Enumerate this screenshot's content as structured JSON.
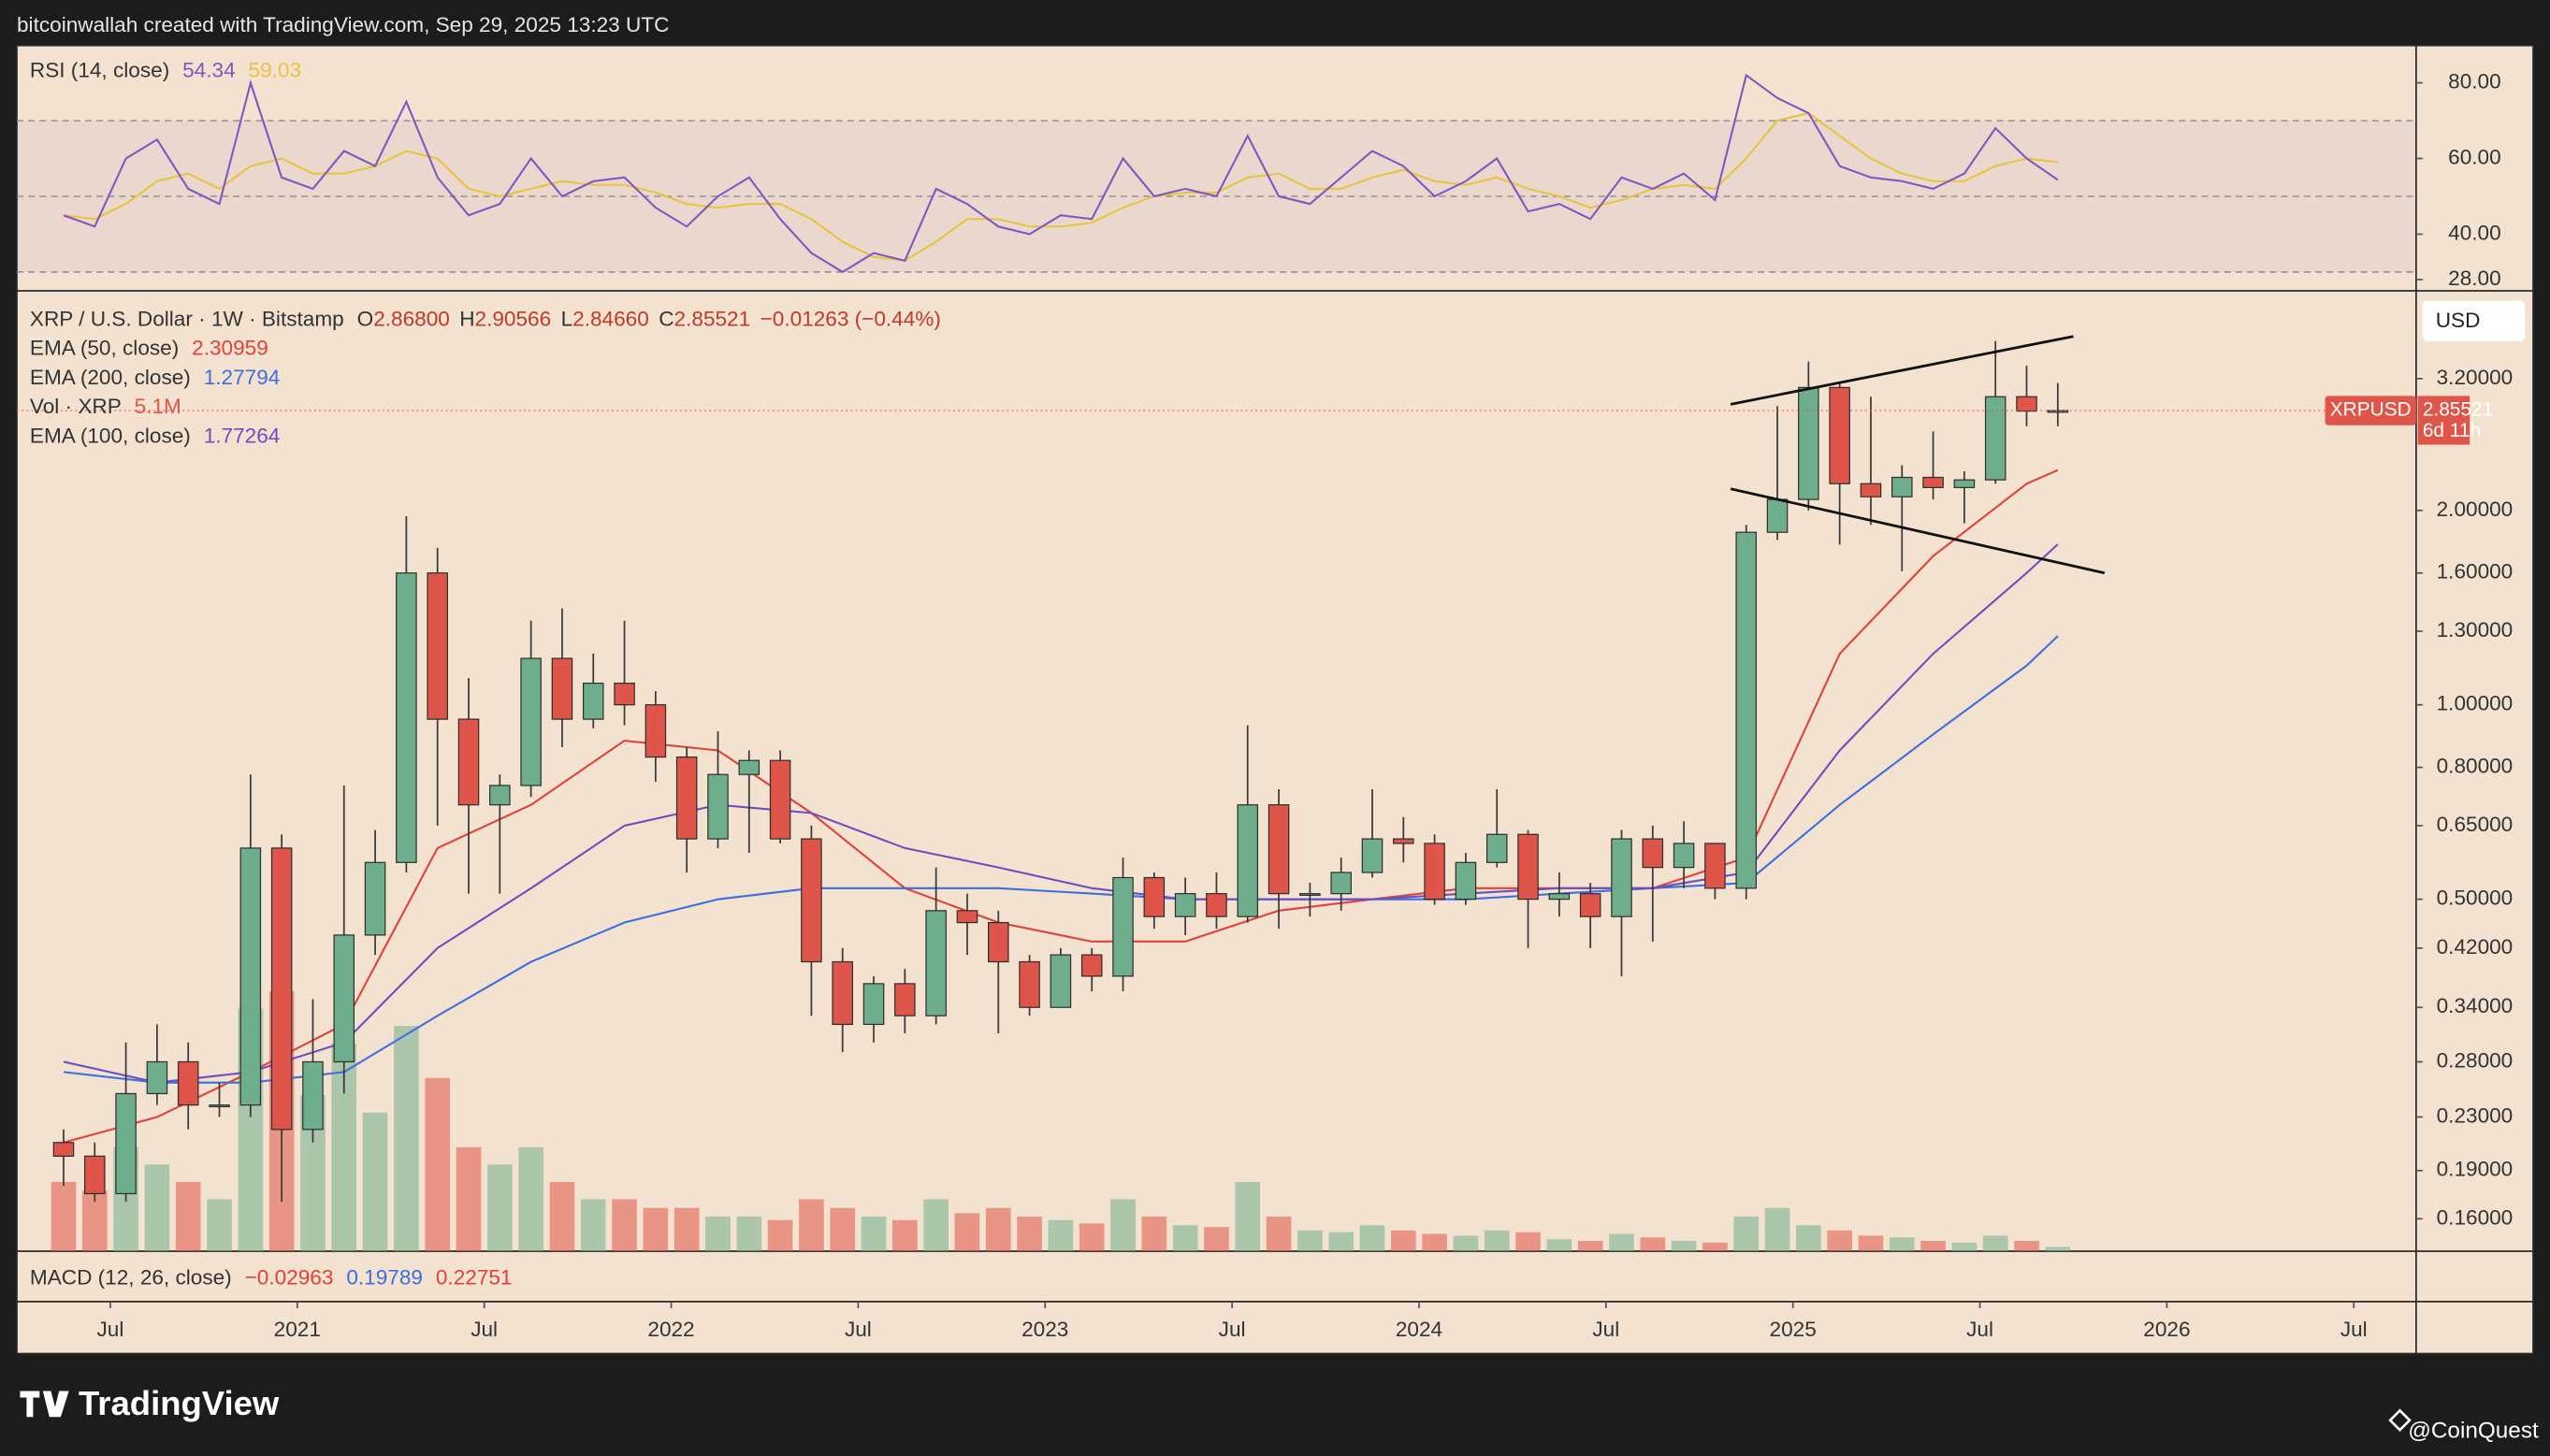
{
  "header": {
    "credit": "bitcoinwallah created with TradingView.com, Sep 29, 2025 13:23 UTC"
  },
  "footer": {
    "brand": "TradingView",
    "watermark": "@CoinQuest"
  },
  "chart_data": {
    "type": "candlestick",
    "quote": {
      "symbol": "XRP / U.S. Dollar · 1W · Bitstamp",
      "fields": [
        {
          "key": "O",
          "value": "2.86800"
        },
        {
          "key": "H",
          "value": "2.90566"
        },
        {
          "key": "L",
          "value": "2.84660"
        },
        {
          "key": "C",
          "value": "2.85521"
        }
      ],
      "change": "−0.01263 (−0.44%)"
    },
    "currency_button": "USD",
    "price_label": {
      "symbol": "XRPUSD",
      "price": "2.85521",
      "countdown": "6d 11h",
      "color": "#e0554a"
    },
    "up_color": "#6fae8c",
    "down_color": "#e0554a",
    "x": [
      "2020-05",
      "2020-06",
      "2020-07",
      "2020-08",
      "2020-09",
      "2020-10",
      "2020-11",
      "2020-12",
      "2021-01",
      "2021-02",
      "2021-03",
      "2021-04",
      "2021-05",
      "2021-06",
      "2021-07",
      "2021-08",
      "2021-09",
      "2021-10",
      "2021-11",
      "2021-12",
      "2022-01",
      "2022-02",
      "2022-03",
      "2022-04",
      "2022-05",
      "2022-06",
      "2022-07",
      "2022-08",
      "2022-09",
      "2022-10",
      "2022-11",
      "2022-12",
      "2023-01",
      "2023-02",
      "2023-03",
      "2023-04",
      "2023-05",
      "2023-06",
      "2023-07",
      "2023-08",
      "2023-09",
      "2023-10",
      "2023-11",
      "2023-12",
      "2024-01",
      "2024-02",
      "2024-03",
      "2024-04",
      "2024-05",
      "2024-06",
      "2024-07",
      "2024-08",
      "2024-09",
      "2024-10",
      "2024-11",
      "2024-12",
      "2025-01",
      "2025-02",
      "2025-03",
      "2025-04",
      "2025-05",
      "2025-06",
      "2025-07",
      "2025-08",
      "2025-09"
    ],
    "open": [
      0.21,
      0.2,
      0.175,
      0.25,
      0.28,
      0.24,
      0.24,
      0.6,
      0.22,
      0.28,
      0.44,
      0.57,
      1.6,
      0.95,
      0.7,
      0.75,
      1.18,
      0.95,
      1.08,
      1.0,
      0.83,
      0.62,
      0.78,
      0.82,
      0.62,
      0.4,
      0.32,
      0.37,
      0.33,
      0.48,
      0.46,
      0.4,
      0.34,
      0.41,
      0.38,
      0.54,
      0.47,
      0.51,
      0.47,
      0.7,
      0.51,
      0.51,
      0.55,
      0.62,
      0.61,
      0.5,
      0.57,
      0.63,
      0.5,
      0.51,
      0.47,
      0.62,
      0.56,
      0.61,
      0.52,
      1.85,
      2.08,
      3.1,
      2.2,
      2.1,
      2.25,
      2.17,
      2.23,
      3.0,
      2.85
    ],
    "high": [
      0.22,
      0.21,
      0.3,
      0.32,
      0.3,
      0.26,
      0.78,
      0.63,
      0.35,
      0.75,
      0.64,
      1.96,
      1.75,
      1.1,
      0.78,
      1.35,
      1.41,
      1.2,
      1.35,
      1.05,
      0.86,
      0.91,
      0.85,
      0.85,
      0.65,
      0.42,
      0.38,
      0.39,
      0.56,
      0.51,
      0.48,
      0.41,
      0.42,
      0.42,
      0.58,
      0.55,
      0.54,
      0.55,
      0.93,
      0.74,
      0.53,
      0.58,
      0.74,
      0.67,
      0.63,
      0.59,
      0.74,
      0.64,
      0.55,
      0.53,
      0.64,
      0.65,
      0.66,
      0.61,
      1.9,
      2.9,
      3.4,
      3.15,
      3.0,
      2.35,
      2.65,
      2.3,
      3.66,
      3.35,
      3.15
    ],
    "low": [
      0.18,
      0.17,
      0.17,
      0.24,
      0.22,
      0.23,
      0.23,
      0.17,
      0.21,
      0.25,
      0.41,
      0.55,
      0.65,
      0.51,
      0.51,
      0.72,
      0.86,
      0.92,
      0.93,
      0.76,
      0.55,
      0.6,
      0.59,
      0.61,
      0.33,
      0.29,
      0.3,
      0.31,
      0.32,
      0.41,
      0.31,
      0.33,
      0.34,
      0.36,
      0.36,
      0.45,
      0.44,
      0.45,
      0.46,
      0.45,
      0.47,
      0.48,
      0.54,
      0.57,
      0.49,
      0.49,
      0.56,
      0.42,
      0.47,
      0.42,
      0.38,
      0.43,
      0.52,
      0.5,
      0.5,
      1.8,
      2.0,
      1.77,
      1.9,
      1.61,
      2.08,
      1.91,
      2.2,
      2.7,
      2.7
    ],
    "close": [
      0.2,
      0.175,
      0.25,
      0.28,
      0.24,
      0.24,
      0.6,
      0.22,
      0.28,
      0.44,
      0.57,
      1.6,
      0.95,
      0.7,
      0.75,
      1.18,
      0.95,
      1.08,
      1.0,
      0.83,
      0.62,
      0.78,
      0.82,
      0.62,
      0.4,
      0.32,
      0.37,
      0.33,
      0.48,
      0.46,
      0.4,
      0.34,
      0.41,
      0.38,
      0.54,
      0.47,
      0.51,
      0.47,
      0.7,
      0.51,
      0.51,
      0.55,
      0.62,
      0.61,
      0.5,
      0.57,
      0.63,
      0.5,
      0.51,
      0.47,
      0.62,
      0.56,
      0.61,
      0.52,
      1.85,
      2.08,
      3.1,
      2.2,
      2.1,
      2.25,
      2.17,
      2.23,
      3.0,
      2.85,
      2.85521
    ],
    "volume": {
      "name": "Vol · XRP",
      "current": "5.1M",
      "color": "#e0554a",
      "values": [
        400,
        350,
        600,
        500,
        400,
        300,
        1400,
        1500,
        900,
        1200,
        800,
        1300,
        1000,
        600,
        500,
        600,
        400,
        300,
        300,
        250,
        250,
        200,
        200,
        180,
        300,
        250,
        200,
        180,
        300,
        220,
        250,
        200,
        180,
        160,
        300,
        200,
        150,
        140,
        400,
        200,
        120,
        110,
        150,
        120,
        100,
        90,
        120,
        110,
        70,
        60,
        100,
        80,
        60,
        50,
        200,
        250,
        150,
        120,
        90,
        80,
        60,
        50,
        90,
        60,
        25
      ]
    },
    "ema": [
      {
        "name": "EMA (50, close)",
        "color": "#e0413a",
        "x": [
          "2020-05",
          "2020-08",
          "2020-11",
          "2021-02",
          "2021-05",
          "2021-08",
          "2021-11",
          "2022-02",
          "2022-05",
          "2022-08",
          "2022-11",
          "2023-02",
          "2023-05",
          "2023-08",
          "2023-11",
          "2024-02",
          "2024-05",
          "2024-08",
          "2024-11",
          "2025-02",
          "2025-05",
          "2025-08",
          "2025-09"
        ],
        "values": [
          0.21,
          0.23,
          0.27,
          0.32,
          0.6,
          0.7,
          0.88,
          0.85,
          0.68,
          0.52,
          0.46,
          0.43,
          0.43,
          0.48,
          0.5,
          0.52,
          0.52,
          0.52,
          0.58,
          1.2,
          1.7,
          2.2,
          2.30959
        ]
      },
      {
        "name": "EMA (200, close)",
        "color": "#3b6ee0",
        "x": [
          "2020-05",
          "2020-08",
          "2020-11",
          "2021-02",
          "2021-05",
          "2021-08",
          "2021-11",
          "2022-02",
          "2022-05",
          "2022-08",
          "2022-11",
          "2023-02",
          "2023-05",
          "2023-08",
          "2023-11",
          "2024-02",
          "2024-05",
          "2024-08",
          "2024-11",
          "2025-02",
          "2025-05",
          "2025-08",
          "2025-09"
        ],
        "values": [
          0.27,
          0.26,
          0.26,
          0.27,
          0.33,
          0.4,
          0.46,
          0.5,
          0.52,
          0.52,
          0.52,
          0.51,
          0.5,
          0.5,
          0.5,
          0.5,
          0.51,
          0.52,
          0.53,
          0.7,
          0.9,
          1.15,
          1.27794
        ]
      },
      {
        "name": "EMA (100, close)",
        "color": "#6a4fc0",
        "x": [
          "2020-05",
          "2020-08",
          "2020-11",
          "2021-02",
          "2021-05",
          "2021-08",
          "2021-11",
          "2022-02",
          "2022-05",
          "2022-08",
          "2022-11",
          "2023-02",
          "2023-05",
          "2023-08",
          "2023-11",
          "2024-02",
          "2024-05",
          "2024-08",
          "2024-11",
          "2025-02",
          "2025-05",
          "2025-08",
          "2025-09"
        ],
        "values": [
          0.28,
          0.26,
          0.27,
          0.3,
          0.42,
          0.52,
          0.65,
          0.7,
          0.68,
          0.6,
          0.56,
          0.52,
          0.5,
          0.5,
          0.5,
          0.51,
          0.52,
          0.52,
          0.55,
          0.85,
          1.2,
          1.6,
          1.77264
        ]
      }
    ],
    "trendlines": [
      {
        "x": [
          "2024-11",
          "2025-10"
        ],
        "values": [
          2.92,
          3.72
        ],
        "color": "#111111"
      },
      {
        "x": [
          "2024-11",
          "2025-11"
        ],
        "values": [
          2.16,
          1.6
        ],
        "color": "#111111"
      }
    ],
    "log_scale": true,
    "grid": false,
    "ylim": [
      0.1425,
      4.35
    ],
    "yticks": [
      {
        "value": 3.2,
        "label": "3.20000"
      },
      {
        "value": 2.0,
        "label": "2.00000"
      },
      {
        "value": 1.6,
        "label": "1.60000"
      },
      {
        "value": 1.3,
        "label": "1.30000"
      },
      {
        "value": 1.0,
        "label": "1.00000"
      },
      {
        "value": 0.8,
        "label": "0.80000"
      },
      {
        "value": 0.65,
        "label": "0.65000"
      },
      {
        "value": 0.5,
        "label": "0.50000"
      },
      {
        "value": 0.42,
        "label": "0.42000"
      },
      {
        "value": 0.34,
        "label": "0.34000"
      },
      {
        "value": 0.28,
        "label": "0.28000"
      },
      {
        "value": 0.23,
        "label": "0.23000"
      },
      {
        "value": 0.19,
        "label": "0.19000"
      },
      {
        "value": 0.16,
        "label": "0.16000"
      }
    ],
    "xlim": [
      "2020-04",
      "2026-09"
    ],
    "xticks": [
      {
        "value": "2020-07",
        "label": "Jul"
      },
      {
        "value": "2021-01",
        "label": "2021"
      },
      {
        "value": "2021-07",
        "label": "Jul"
      },
      {
        "value": "2022-01",
        "label": "2022"
      },
      {
        "value": "2022-07",
        "label": "Jul"
      },
      {
        "value": "2023-01",
        "label": "2023"
      },
      {
        "value": "2023-07",
        "label": "Jul"
      },
      {
        "value": "2024-01",
        "label": "2024"
      },
      {
        "value": "2024-07",
        "label": "Jul"
      },
      {
        "value": "2025-01",
        "label": "2025"
      },
      {
        "value": "2025-07",
        "label": "Jul"
      },
      {
        "value": "2026-01",
        "label": "2026"
      },
      {
        "value": "2026-07",
        "label": "Jul"
      }
    ],
    "rsi": {
      "name": "RSI (14, close)",
      "color": "#7e57c2",
      "ma_color": "#e8c340",
      "ylim": [
        26.3,
        89
      ],
      "yticks": [
        {
          "value": 80,
          "label": "80.00"
        },
        {
          "value": 60,
          "label": "60.00"
        },
        {
          "value": 40,
          "label": "40.00"
        },
        {
          "value": 28,
          "label": "28.00"
        }
      ],
      "bands": [
        30,
        50,
        70
      ],
      "values": [
        45,
        42,
        60,
        65,
        52,
        48,
        80,
        55,
        52,
        62,
        58,
        75,
        55,
        45,
        48,
        60,
        50,
        54,
        55,
        47,
        42,
        50,
        55,
        44,
        35,
        30,
        35,
        33,
        52,
        48,
        42,
        40,
        45,
        44,
        60,
        50,
        52,
        50,
        66,
        50,
        48,
        55,
        62,
        58,
        50,
        54,
        60,
        46,
        48,
        44,
        55,
        52,
        56,
        49,
        82,
        76,
        72,
        58,
        55,
        54,
        52,
        56,
        68,
        60,
        54.34
      ],
      "ma": [
        45,
        44,
        48,
        54,
        56,
        52,
        58,
        60,
        56,
        56,
        58,
        62,
        60,
        52,
        50,
        52,
        54,
        53,
        53,
        51,
        48,
        47,
        48,
        48,
        44,
        38,
        34,
        33,
        38,
        44,
        44,
        42,
        42,
        43,
        47,
        50,
        51,
        51,
        55,
        56,
        52,
        52,
        55,
        57,
        54,
        53,
        55,
        52,
        50,
        47,
        49,
        52,
        53,
        52,
        60,
        70,
        72,
        66,
        60,
        56,
        54,
        54,
        58,
        60,
        59.03
      ]
    },
    "macd": {
      "name": "MACD (12, 26, close)",
      "values": [
        "−0.02963",
        "0.19789",
        "0.22751"
      ],
      "colors": [
        "#e0413a",
        "#3b6ee0",
        "#e0413a"
      ]
    }
  }
}
